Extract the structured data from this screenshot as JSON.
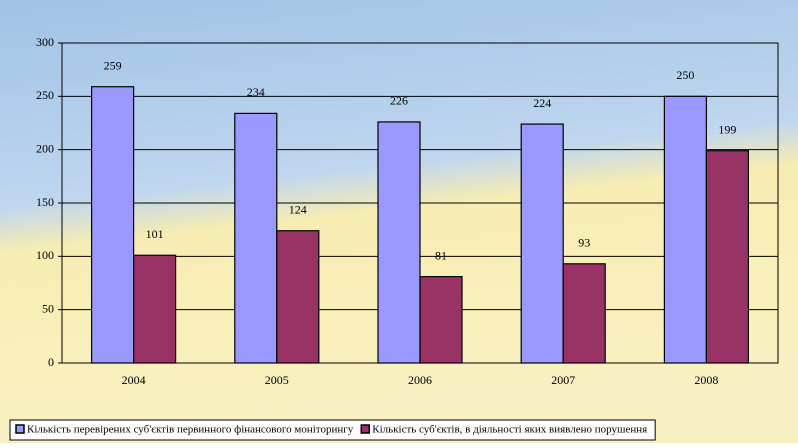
{
  "chart_data": {
    "type": "bar",
    "categories": [
      "2004",
      "2005",
      "2006",
      "2007",
      "2008"
    ],
    "series": [
      {
        "name": "Кількість перевірених суб'єктів первинного фінансового моніторингу",
        "color": "#9999ff",
        "values": [
          259,
          234,
          226,
          224,
          250
        ]
      },
      {
        "name": "Кількість суб'єктів, в діяльності яких виявлено порушення",
        "color": "#993366",
        "values": [
          101,
          124,
          81,
          93,
          199
        ]
      }
    ],
    "ylim": [
      0,
      300
    ],
    "yticks": [
      0,
      50,
      100,
      150,
      200,
      250,
      300
    ],
    "grid": true,
    "legend": "bottom"
  }
}
